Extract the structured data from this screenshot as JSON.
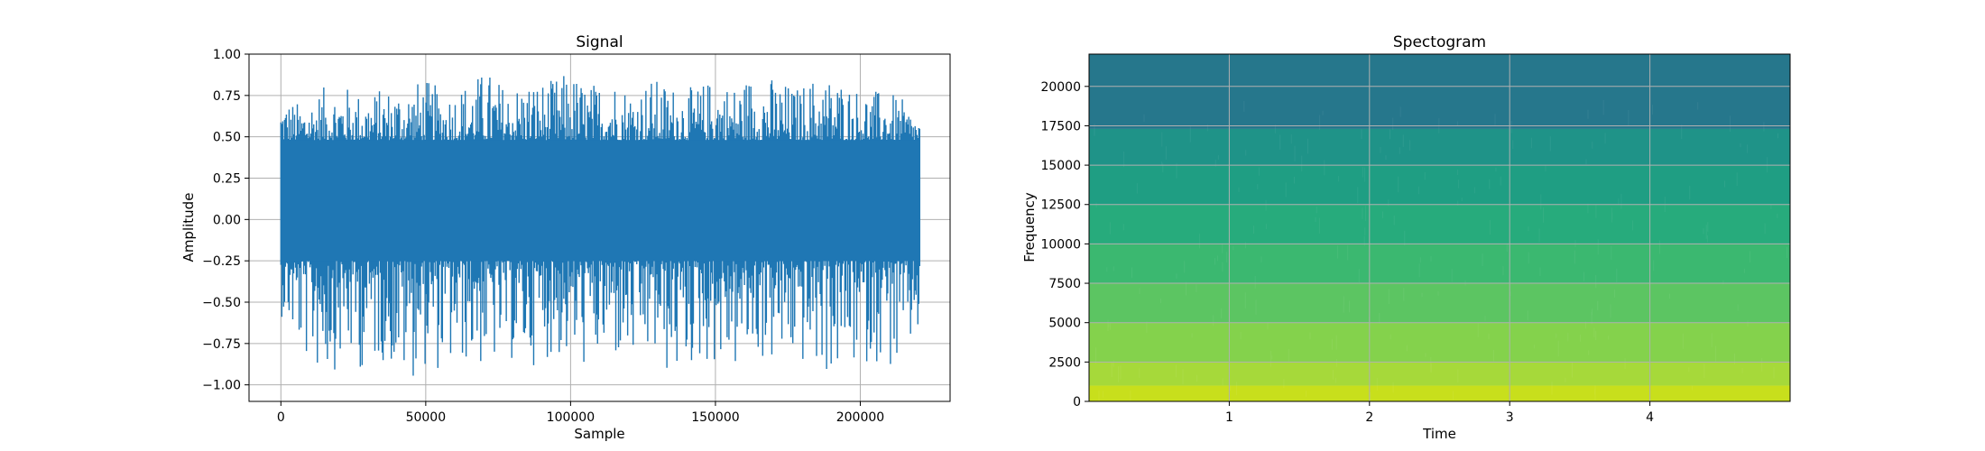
{
  "chart_data": [
    {
      "type": "line",
      "title": "Signal",
      "xlabel": "Sample",
      "ylabel": "Amplitude",
      "xlim": [
        -11000,
        231000
      ],
      "ylim": [
        -1.1,
        1.0
      ],
      "x_ticks": [
        {
          "value": 0,
          "label": "0"
        },
        {
          "value": 50000,
          "label": "50000"
        },
        {
          "value": 100000,
          "label": "100000"
        },
        {
          "value": 150000,
          "label": "150000"
        },
        {
          "value": 200000,
          "label": "200000"
        }
      ],
      "y_ticks": [
        {
          "value": 1.0,
          "label": "1.00"
        },
        {
          "value": 0.75,
          "label": "0.75"
        },
        {
          "value": 0.5,
          "label": "0.50"
        },
        {
          "value": 0.25,
          "label": "0.25"
        },
        {
          "value": 0.0,
          "label": "0.00"
        },
        {
          "value": -0.25,
          "label": "−0.25"
        },
        {
          "value": -0.5,
          "label": "−0.50"
        },
        {
          "value": -0.75,
          "label": "−0.75"
        },
        {
          "value": -1.0,
          "label": "−1.00"
        }
      ],
      "grid": true,
      "series": [
        {
          "color": "#1f77b4",
          "x_start": 0,
          "x_end": 220500,
          "upper_envelope": [
            0.75,
            0.7,
            0.8,
            0.82,
            0.76,
            0.8,
            0.82,
            0.85,
            0.78,
            0.84,
            0.91,
            0.8,
            0.86,
            0.84,
            0.9,
            0.82,
            0.88,
            0.8,
            0.86,
            0.82,
            0.8,
            0.86,
            0.82,
            0.9,
            0.86,
            0.8,
            0.88,
            0.87,
            0.8,
            0.78,
            0.75,
            0.6
          ],
          "lower_envelope": [
            -0.58,
            -0.84,
            -0.96,
            -0.88,
            -0.92,
            -0.86,
            -1.0,
            -0.9,
            -0.94,
            -0.88,
            -0.92,
            -0.86,
            -0.9,
            -0.84,
            -0.88,
            -0.92,
            -0.86,
            -0.92,
            -0.86,
            -1.0,
            -0.9,
            -0.88,
            -0.94,
            -0.86,
            -0.9,
            -0.88,
            -0.94,
            -0.96,
            -0.9,
            -0.86,
            -0.98,
            -0.7
          ],
          "core_band": [
            -0.25,
            0.48
          ]
        }
      ]
    },
    {
      "type": "heatmap",
      "title": "Spectogram",
      "xlabel": "Time",
      "ylabel": "Frequency",
      "xlim": [
        0,
        5.0
      ],
      "ylim": [
        0,
        22050
      ],
      "x_ticks": [
        {
          "value": 1,
          "label": "1"
        },
        {
          "value": 2,
          "label": "2"
        },
        {
          "value": 3,
          "label": "3"
        },
        {
          "value": 4,
          "label": "4"
        }
      ],
      "y_ticks": [
        {
          "value": 0,
          "label": "0"
        },
        {
          "value": 2500,
          "label": "2500"
        },
        {
          "value": 5000,
          "label": "5000"
        },
        {
          "value": 7500,
          "label": "7500"
        },
        {
          "value": 10000,
          "label": "10000"
        },
        {
          "value": 12500,
          "label": "12500"
        },
        {
          "value": 15000,
          "label": "15000"
        },
        {
          "value": 17500,
          "label": "17500"
        },
        {
          "value": 20000,
          "label": "20000"
        }
      ],
      "grid": true,
      "colormap": "viridis",
      "frequency_bands": [
        {
          "from": 0,
          "to": 1000,
          "color": "#c8df1c"
        },
        {
          "from": 1000,
          "to": 2500,
          "color": "#a6d93a"
        },
        {
          "from": 2500,
          "to": 5000,
          "color": "#84d24c"
        },
        {
          "from": 5000,
          "to": 7500,
          "color": "#5cc562"
        },
        {
          "from": 7500,
          "to": 10000,
          "color": "#3bb870"
        },
        {
          "from": 10000,
          "to": 12500,
          "color": "#27ab7c"
        },
        {
          "from": 12500,
          "to": 15000,
          "color": "#1f9e83"
        },
        {
          "from": 15000,
          "to": 17300,
          "color": "#1f9388"
        },
        {
          "from": 17300,
          "to": 22050,
          "color": "#26778c"
        }
      ]
    }
  ]
}
